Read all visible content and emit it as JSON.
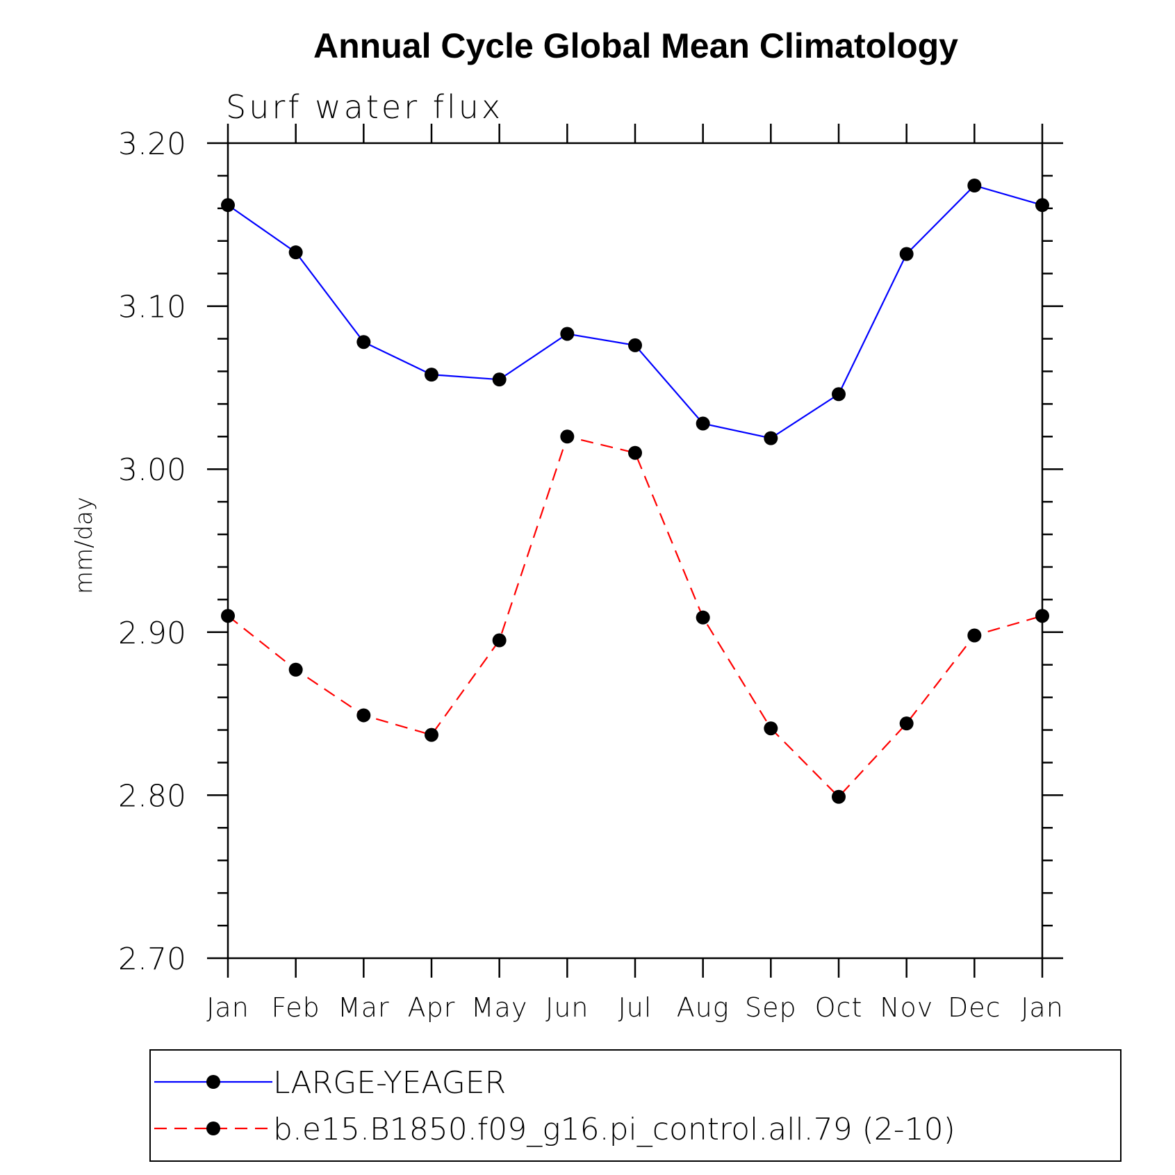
{
  "chart_data": {
    "type": "line",
    "title": "Annual Cycle Global Mean Climatology",
    "subtitle": "Surf water flux",
    "xlabel": "",
    "ylabel": "mm/day",
    "categories": [
      "Jan",
      "Feb",
      "Mar",
      "Apr",
      "May",
      "Jun",
      "Jul",
      "Aug",
      "Sep",
      "Oct",
      "Nov",
      "Dec",
      "Jan"
    ],
    "ylim": [
      2.7,
      3.2
    ],
    "yticks": [
      "2.70",
      "2.80",
      "2.90",
      "3.00",
      "3.10",
      "3.20"
    ],
    "grid": false,
    "legend_position": "bottom",
    "series": [
      {
        "name": "LARGE-YEAGER",
        "color": "#0000ff",
        "line_style": "solid",
        "marker": "filled-circle",
        "values": [
          3.162,
          3.133,
          3.078,
          3.058,
          3.055,
          3.083,
          3.076,
          3.028,
          3.019,
          3.046,
          3.132,
          3.174,
          3.162
        ]
      },
      {
        "name": "b.e15.B1850.f09_g16.pi_control.all.79 (2-10)",
        "color": "#ff0000",
        "line_style": "dashed",
        "marker": "filled-circle",
        "values": [
          2.91,
          2.877,
          2.849,
          2.837,
          2.895,
          3.02,
          3.01,
          2.909,
          2.841,
          2.799,
          2.844,
          2.898,
          2.91
        ]
      }
    ]
  }
}
